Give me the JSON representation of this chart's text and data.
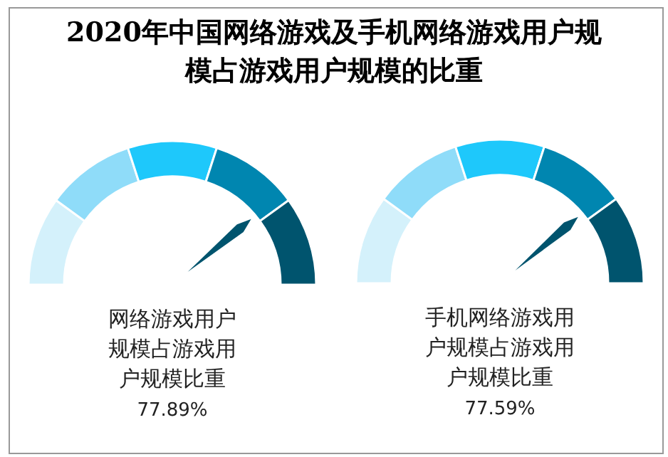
{
  "chart_data": [
    {
      "type": "other",
      "title": "2020年中国网络游戏及手机网络游戏用户规模占游戏用户规模的比重",
      "values": [
        77.89
      ],
      "value_labels": [
        "77.89%"
      ],
      "color": "#00546e",
      "annotations": [
        "网络游戏用户",
        "规模占游戏用",
        "户规模比重"
      ]
    },
    {
      "type": "other",
      "values": [
        77.59
      ],
      "value_labels": [
        "77.59%"
      ],
      "color": "#00546e",
      "annotations": [
        "手机网络游戏用",
        "户规模占游戏用",
        "户规模比重"
      ]
    }
  ]
}
